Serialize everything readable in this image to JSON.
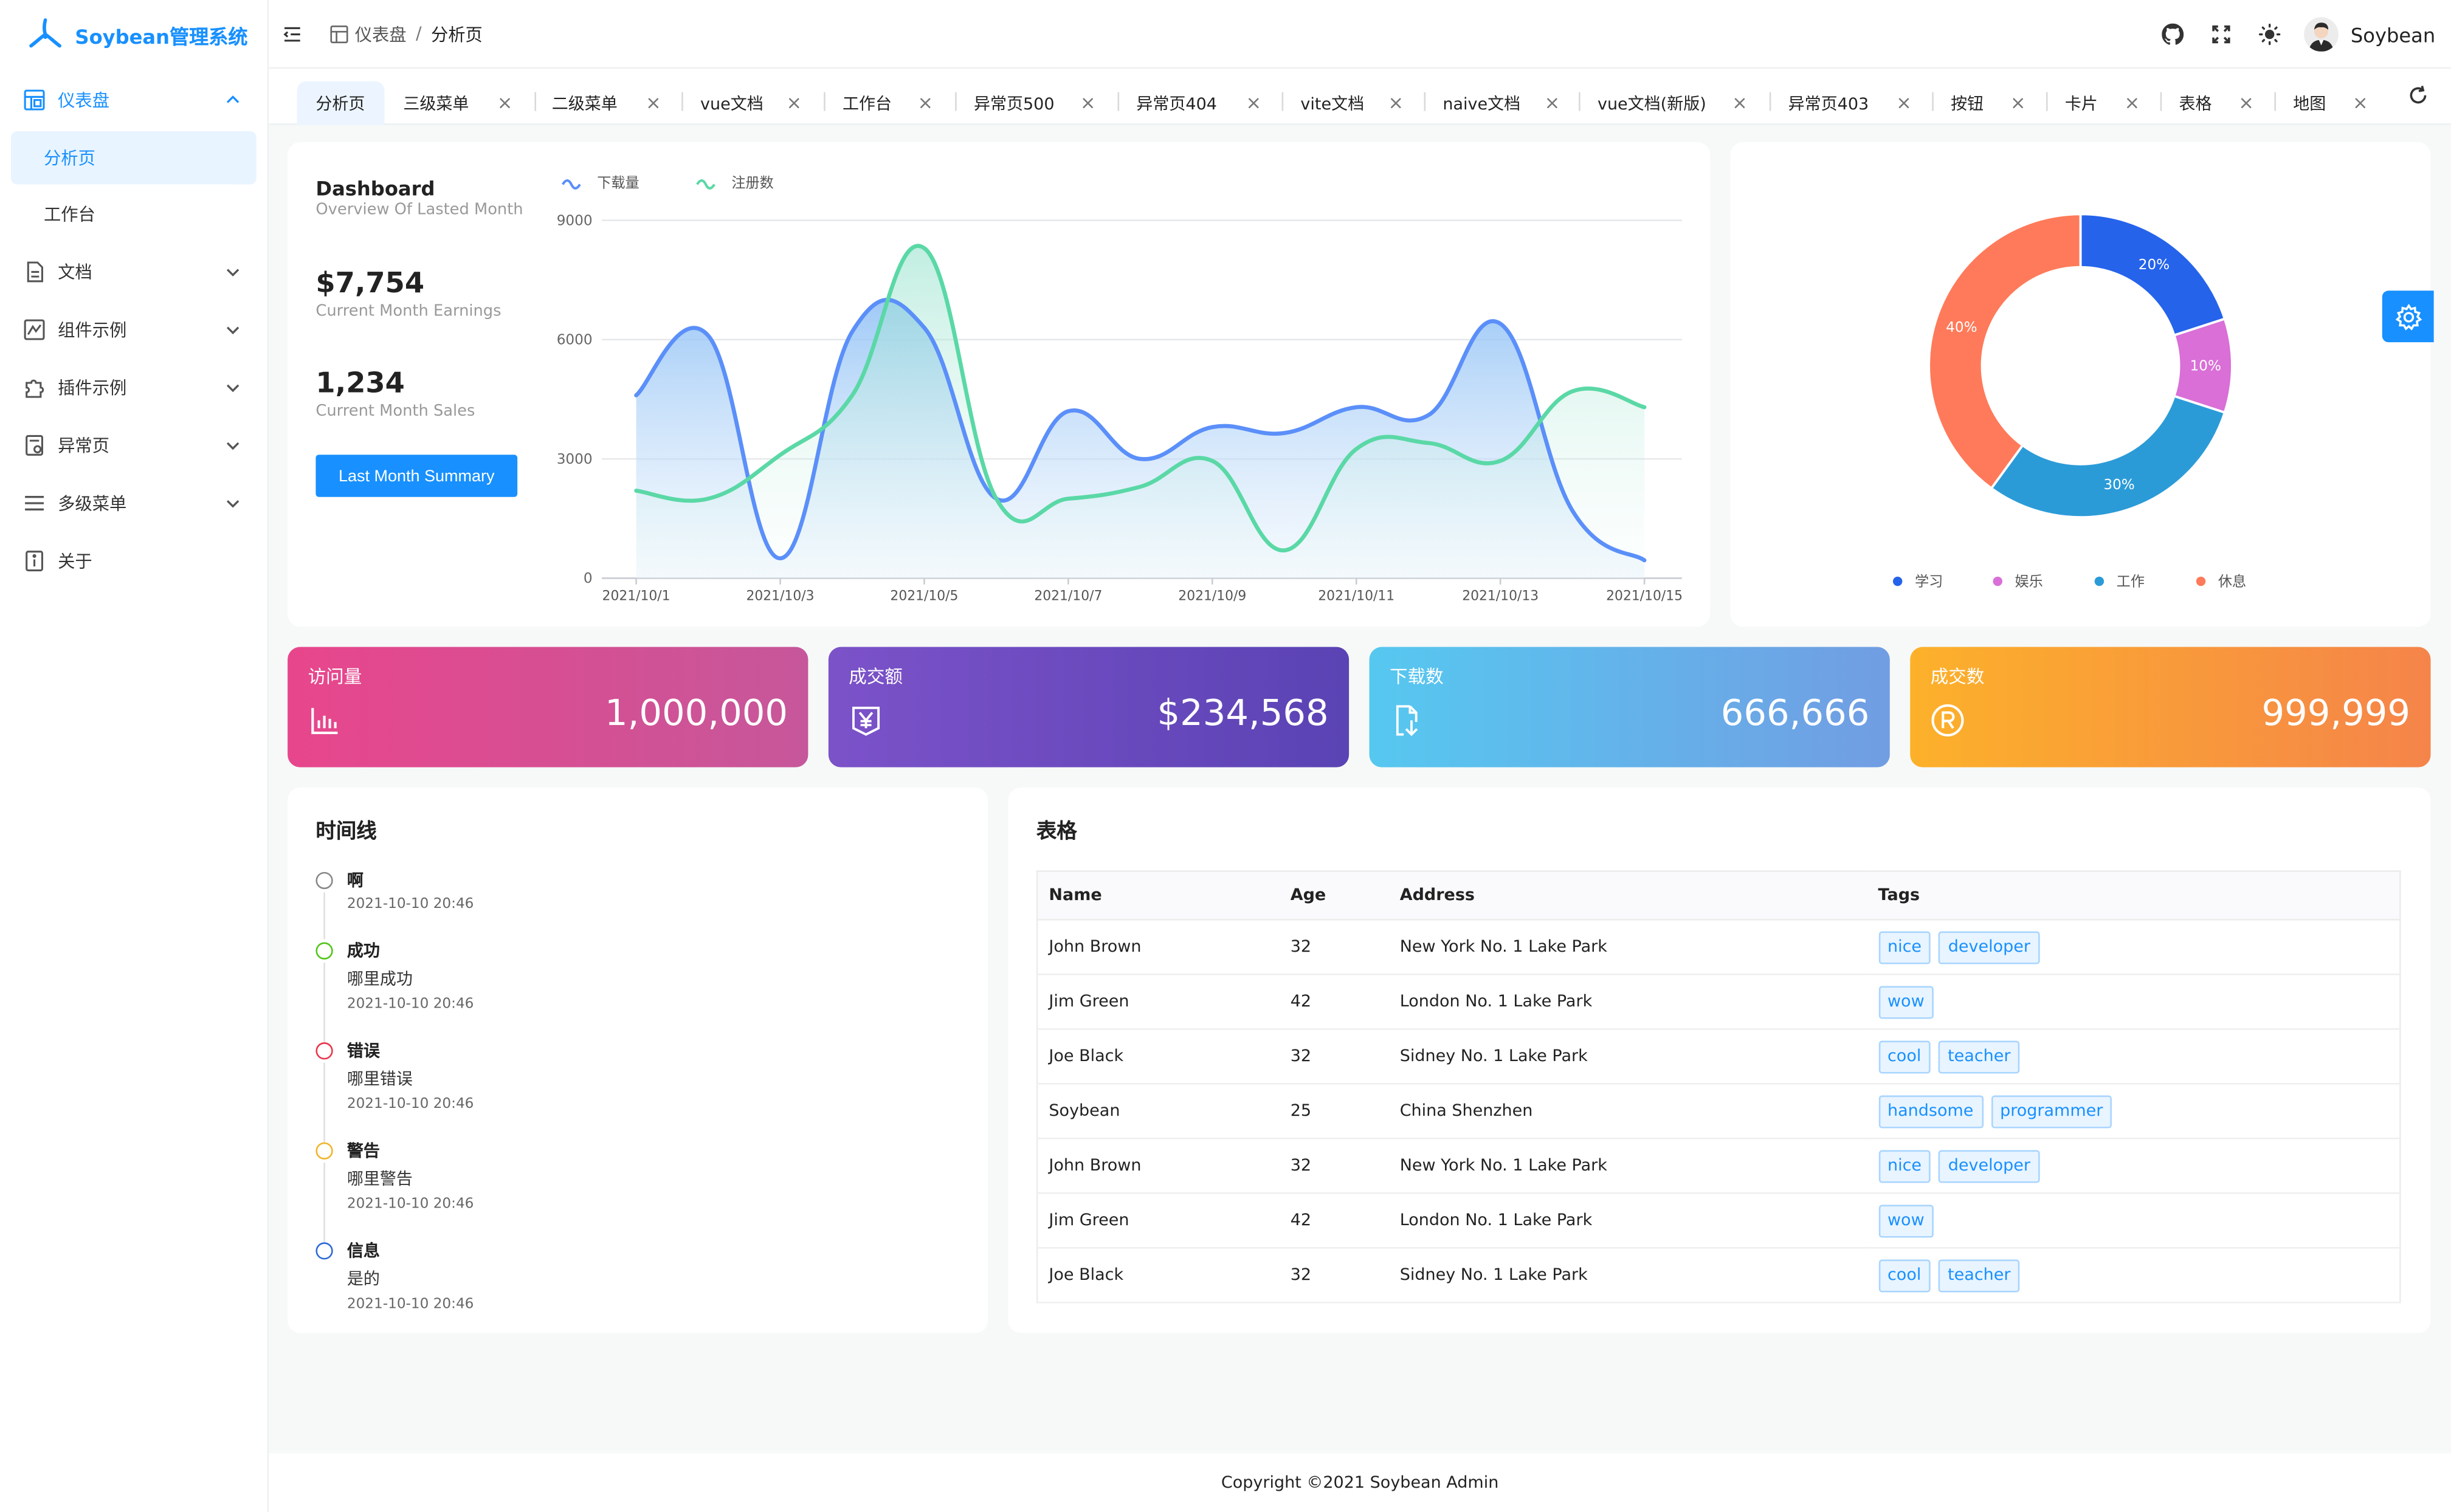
{
  "app": {
    "title": "Soybean管理系统"
  },
  "sidebar": {
    "items": [
      {
        "label": "仪表盘",
        "icon": "dashboard-icon",
        "expanded": true
      },
      {
        "label": "分析页",
        "active": true
      },
      {
        "label": "工作台"
      },
      {
        "label": "文档",
        "icon": "document-icon"
      },
      {
        "label": "组件示例",
        "icon": "component-icon"
      },
      {
        "label": "插件示例",
        "icon": "plugin-icon"
      },
      {
        "label": "异常页",
        "icon": "exception-icon"
      },
      {
        "label": "多级菜单",
        "icon": "multi-menu-icon"
      },
      {
        "label": "关于",
        "icon": "about-icon"
      }
    ]
  },
  "header": {
    "breadcrumb": {
      "parent": "仪表盘",
      "separator": "/",
      "current": "分析页"
    },
    "username": "Soybean"
  },
  "tabs": [
    "分析页",
    "三级菜单",
    "二级菜单",
    "vue文档",
    "工作台",
    "异常页500",
    "异常页404",
    "vite文档",
    "naive文档",
    "vue文档(新版)",
    "异常页403",
    "按钮",
    "卡片",
    "表格",
    "地图"
  ],
  "dashboard": {
    "title": "Dashboard",
    "subtitle": "Overview Of Lasted Month",
    "earnings": "$7,754",
    "earnings_label": "Current Month Earnings",
    "sales": "1,234",
    "sales_label": "Current Month Sales",
    "button": "Last Month Summary"
  },
  "chart_data": [
    {
      "type": "area",
      "x": [
        "2021/10/1",
        "2021/10/2",
        "2021/10/3",
        "2021/10/4",
        "2021/10/5",
        "2021/10/6",
        "2021/10/7",
        "2021/10/8",
        "2021/10/9",
        "2021/10/10",
        "2021/10/11",
        "2021/10/12",
        "2021/10/13",
        "2021/10/14",
        "2021/10/15"
      ],
      "x_tick_labels": [
        "2021/10/1",
        "2021/10/3",
        "2021/10/5",
        "2021/10/7",
        "2021/10/9",
        "2021/10/11",
        "2021/10/13",
        "2021/10/15"
      ],
      "y_tick_labels": [
        "0",
        "3000",
        "6000",
        "9000"
      ],
      "ylim": [
        0,
        9000
      ],
      "legend_position": "top-left",
      "grid": true,
      "series": [
        {
          "name": "下载量",
          "color": "#5b8ff9",
          "values": [
            4600,
            6100,
            500,
            6200,
            6300,
            2000,
            4200,
            3000,
            3800,
            3650,
            4300,
            4100,
            6400,
            1700,
            450
          ]
        },
        {
          "name": "注册数",
          "color": "#5ad8a6",
          "values": [
            2200,
            2000,
            3100,
            4600,
            8300,
            2000,
            2000,
            2300,
            2950,
            700,
            3250,
            3400,
            2950,
            4700,
            4300
          ]
        }
      ]
    },
    {
      "type": "pie",
      "series": [
        {
          "name": "学习",
          "value": 20,
          "label": "20%",
          "color": "#2563eb"
        },
        {
          "name": "娱乐",
          "value": 10,
          "label": "10%",
          "color": "#d96fd7"
        },
        {
          "name": "工作",
          "value": 30,
          "label": "30%",
          "color": "#2b9bd8"
        },
        {
          "name": "休息",
          "value": 40,
          "label": "40%",
          "color": "#ff7a5a"
        }
      ],
      "legend_position": "bottom"
    }
  ],
  "stats": [
    {
      "title": "访问量",
      "value": "1,000,000",
      "icon": "bar-chart-icon",
      "from": "#e8468c",
      "to": "#c6579a"
    },
    {
      "title": "成交额",
      "value": "$234,568",
      "icon": "yen-bill-icon",
      "from": "#7c52c9",
      "to": "#5a43b4"
    },
    {
      "title": "下载数",
      "value": "666,666",
      "icon": "download-file-icon",
      "from": "#56c8f0",
      "to": "#719de3"
    },
    {
      "title": "成交数",
      "value": "999,999",
      "icon": "registered-icon",
      "from": "#fcb12a",
      "to": "#f5844a"
    }
  ],
  "timeline": {
    "title": "时间线",
    "items": [
      {
        "title": "啊",
        "content": "",
        "time": "2021-10-10 20:46",
        "color": "#888888"
      },
      {
        "title": "成功",
        "content": "哪里成功",
        "time": "2021-10-10 20:46",
        "color": "#52c41a"
      },
      {
        "title": "错误",
        "content": "哪里错误",
        "time": "2021-10-10 20:46",
        "color": "#e8364d"
      },
      {
        "title": "警告",
        "content": "哪里警告",
        "time": "2021-10-10 20:46",
        "color": "#f0b429"
      },
      {
        "title": "信息",
        "content": "是的",
        "time": "2021-10-10 20:46",
        "color": "#2d6ad6"
      }
    ]
  },
  "table": {
    "title": "表格",
    "columns": [
      "Name",
      "Age",
      "Address",
      "Tags"
    ],
    "rows": [
      {
        "name": "John Brown",
        "age": "32",
        "address": "New York No. 1 Lake Park",
        "tags": [
          "nice",
          "developer"
        ]
      },
      {
        "name": "Jim Green",
        "age": "42",
        "address": "London No. 1 Lake Park",
        "tags": [
          "wow"
        ]
      },
      {
        "name": "Joe Black",
        "age": "32",
        "address": "Sidney No. 1 Lake Park",
        "tags": [
          "cool",
          "teacher"
        ]
      },
      {
        "name": "Soybean",
        "age": "25",
        "address": "China Shenzhen",
        "tags": [
          "handsome",
          "programmer"
        ]
      },
      {
        "name": "John Brown",
        "age": "32",
        "address": "New York No. 1 Lake Park",
        "tags": [
          "nice",
          "developer"
        ]
      },
      {
        "name": "Jim Green",
        "age": "42",
        "address": "London No. 1 Lake Park",
        "tags": [
          "wow"
        ]
      },
      {
        "name": "Joe Black",
        "age": "32",
        "address": "Sidney No. 1 Lake Park",
        "tags": [
          "cool",
          "teacher"
        ]
      }
    ]
  },
  "footer": {
    "text": "Copyright ©2021 Soybean Admin"
  }
}
